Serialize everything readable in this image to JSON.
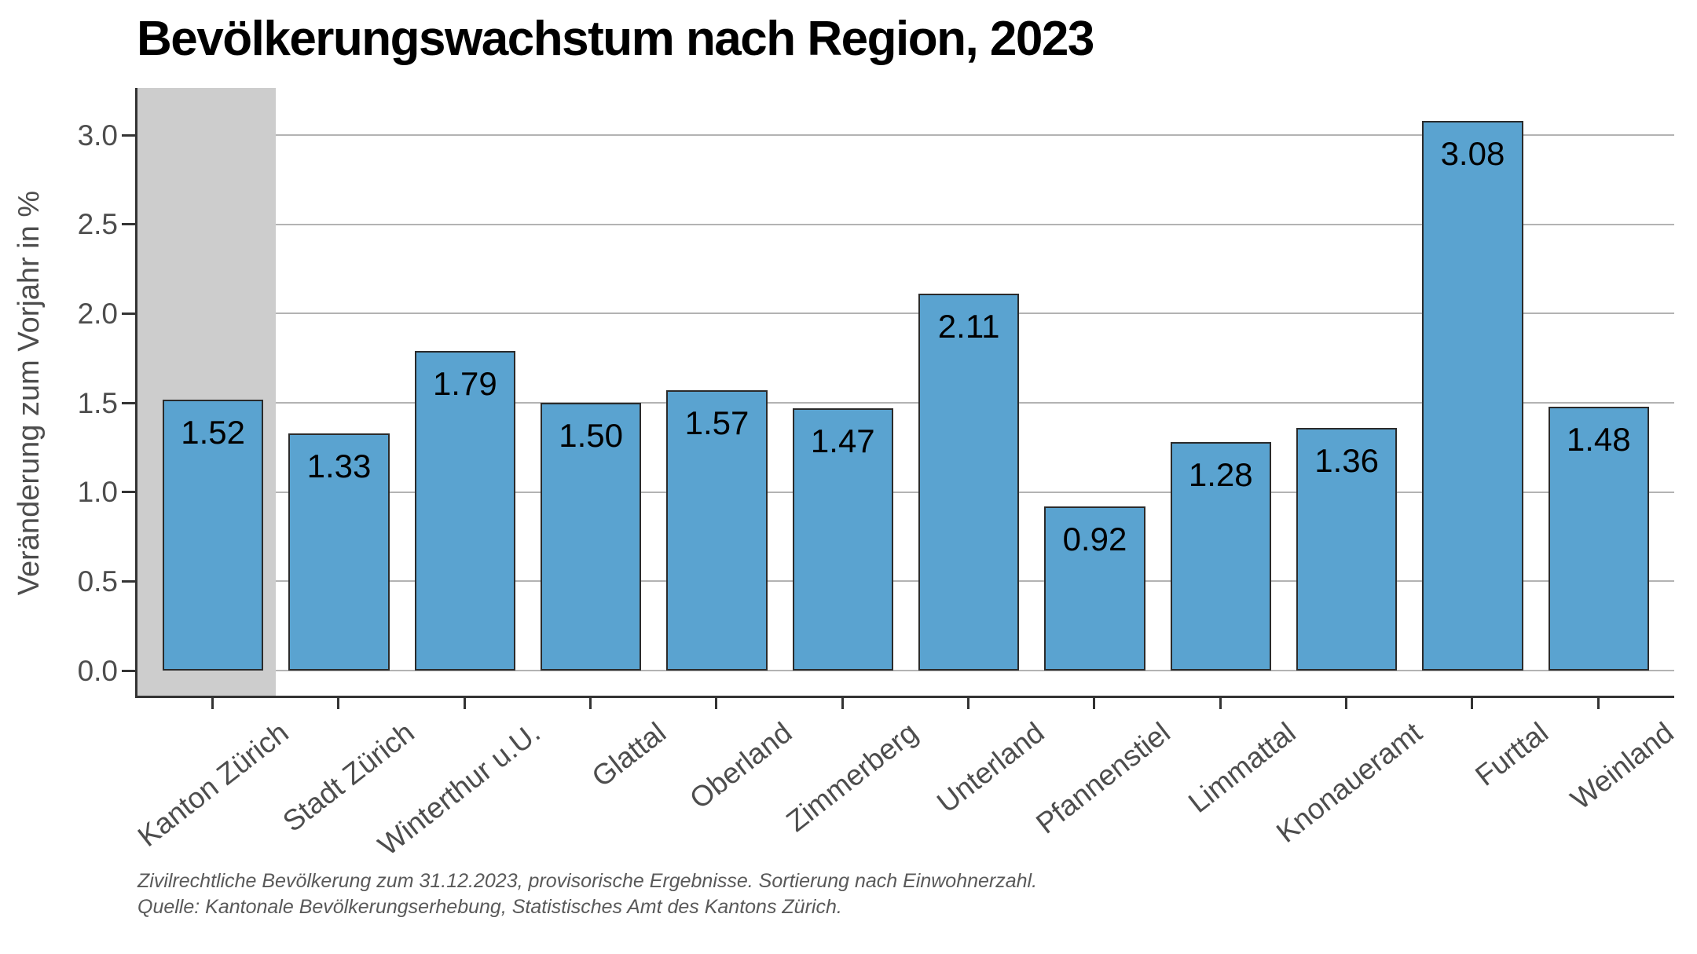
{
  "title": "Bevölkerungswachstum nach Region, 2023",
  "chart_data": {
    "type": "bar",
    "title": "Bevölkerungswachstum nach Region, 2023",
    "xlabel": "",
    "ylabel": "Veränderung zum Vorjahr in %",
    "categories": [
      "Kanton Zürich",
      "Stadt Zürich",
      "Winterthur u.U.",
      "Glattal",
      "Oberland",
      "Zimmerberg",
      "Unterland",
      "Pfannenstiel",
      "Limmattal",
      "Knonaueramt",
      "Furttal",
      "Weinland"
    ],
    "values": [
      1.52,
      1.33,
      1.79,
      1.5,
      1.57,
      1.47,
      2.11,
      0.92,
      1.28,
      1.36,
      3.08,
      1.48
    ],
    "value_labels": [
      "1.52",
      "1.33",
      "1.79",
      "1.50",
      "1.57",
      "1.47",
      "2.11",
      "0.92",
      "1.28",
      "1.36",
      "3.08",
      "1.48"
    ],
    "yticks": [
      0.0,
      0.5,
      1.0,
      1.5,
      2.0,
      2.5,
      3.0
    ],
    "ytick_labels": [
      "0.0",
      "0.5",
      "1.0",
      "1.5",
      "2.0",
      "2.5",
      "3.0"
    ],
    "ylim": [
      0,
      3.27
    ],
    "grid": "horizontal",
    "legend_position": "none",
    "highlighted_category": "Kanton Zürich",
    "colors": {
      "bar_fill": "#5AA3D0",
      "bar_outline": "#2b2b2b",
      "highlight_band": "#cdcdcd",
      "gridline": "#b3b3b3",
      "axis_line": "#333333",
      "axis_text": "#4d4d4d"
    }
  },
  "footnotes": {
    "line1": "Zivilrechtliche Bevölkerung zum 31.12.2023, provisorische Ergebnisse. Sortierung nach Einwohnerzahl.",
    "line2": "Quelle: Kantonale Bevölkerungserhebung, Statistisches Amt des Kantons Zürich."
  }
}
